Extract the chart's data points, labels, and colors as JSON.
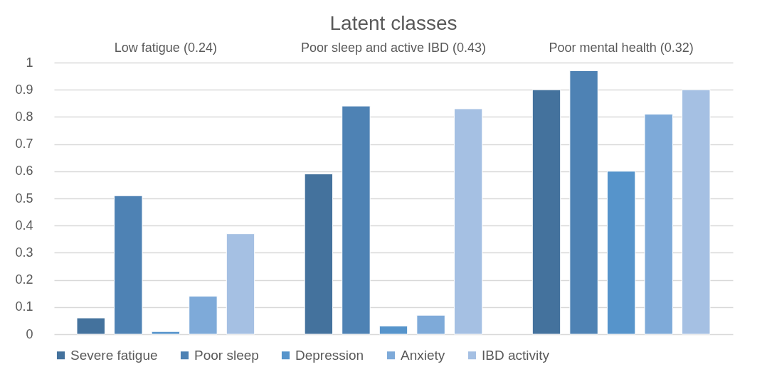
{
  "chart_data": {
    "type": "bar",
    "title": "Latent classes",
    "categories": [
      "Low fatigue (0.24)",
      "Poor sleep and active IBD (0.43)",
      "Poor mental health (0.32)"
    ],
    "series": [
      {
        "name": "Severe fatigue",
        "color": "#44729d",
        "values": [
          0.06,
          0.59,
          0.9
        ]
      },
      {
        "name": "Poor sleep",
        "color": "#4e82b4",
        "values": [
          0.51,
          0.84,
          0.97
        ]
      },
      {
        "name": "Depression",
        "color": "#5694cb",
        "values": [
          0.01,
          0.03,
          0.6
        ]
      },
      {
        "name": "Anxiety",
        "color": "#7eaad9",
        "values": [
          0.14,
          0.07,
          0.81
        ]
      },
      {
        "name": "IBD activity",
        "color": "#a5c0e3",
        "values": [
          0.37,
          0.83,
          0.9
        ]
      }
    ],
    "ylim": [
      0,
      1
    ],
    "yticks": [
      0,
      0.1,
      0.2,
      0.3,
      0.4,
      0.5,
      0.6,
      0.7,
      0.8,
      0.9,
      1
    ],
    "grid": "y",
    "legend": "bottom"
  }
}
